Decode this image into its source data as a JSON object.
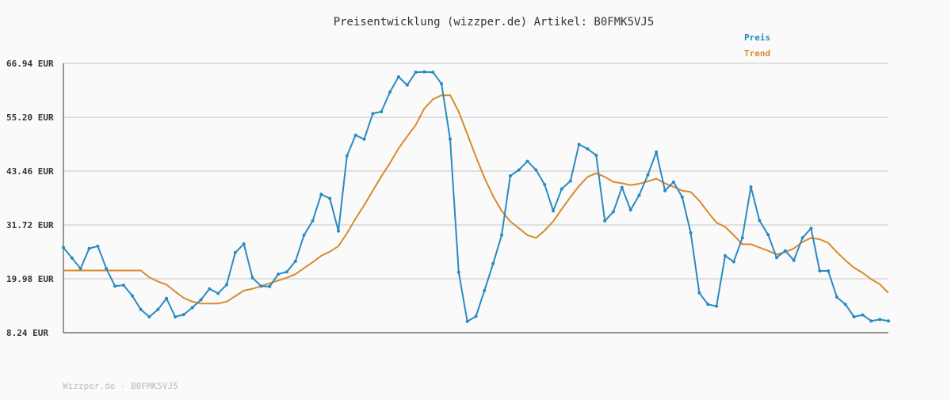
{
  "chart_data": {
    "type": "line",
    "title": "Preisentwicklung (wizzper.de) Artikel: B0FMK5VJ5",
    "y_ticks": [
      "66.94 EUR",
      "55.20 EUR",
      "43.46 EUR",
      "31.72 EUR",
      "19.98 EUR",
      "8.24 EUR"
    ],
    "ylim": [
      8.24,
      66.94
    ],
    "grid": true,
    "legend_position": "top-right",
    "series": [
      {
        "name": "Preis",
        "color": "#2a8ac2",
        "markers": true,
        "values": [
          26.8,
          24.5,
          22.2,
          26.6,
          27.1,
          22.2,
          18.4,
          18.6,
          16.3,
          13.3,
          11.7,
          13.3,
          15.7,
          11.7,
          12.2,
          13.7,
          15.4,
          17.8,
          16.8,
          18.7,
          25.7,
          27.6,
          20.2,
          18.4,
          18.3,
          21.0,
          21.5,
          23.8,
          29.5,
          32.6,
          38.4,
          37.5,
          30.4,
          46.8,
          51.3,
          50.4,
          56.0,
          56.4,
          60.7,
          64.0,
          62.2,
          65.0,
          65.1,
          65.0,
          62.5,
          50.4,
          21.4,
          10.7,
          11.8,
          17.4,
          23.3,
          29.5,
          42.4,
          43.7,
          45.6,
          43.7,
          40.5,
          34.8,
          39.6,
          41.3,
          49.3,
          48.3,
          46.9,
          32.6,
          34.6,
          39.9,
          35.0,
          38.2,
          42.6,
          47.6,
          39.2,
          41.1,
          37.8,
          30.0,
          16.9,
          14.4,
          14.0,
          25.0,
          23.7,
          28.9,
          40.0,
          32.7,
          29.6,
          24.6,
          26.1,
          24.0,
          28.9,
          31.0,
          21.7,
          21.7,
          16.0,
          14.4,
          11.7,
          12.1,
          10.8,
          11.1,
          10.8
        ]
      },
      {
        "name": "Trend",
        "color": "#d98a2b",
        "markers": false,
        "values": [
          21.8,
          21.8,
          21.8,
          21.8,
          21.8,
          21.8,
          21.8,
          21.8,
          21.8,
          21.8,
          20.3,
          19.4,
          18.7,
          17.2,
          15.8,
          15.0,
          14.6,
          14.6,
          14.6,
          15.0,
          16.2,
          17.4,
          17.8,
          18.4,
          19.0,
          19.6,
          20.2,
          21.0,
          22.3,
          23.6,
          25.0,
          25.9,
          27.1,
          29.9,
          33.1,
          36.0,
          39.2,
          42.3,
          45.2,
          48.4,
          51.0,
          53.5,
          57.1,
          59.1,
          60.0,
          60.0,
          56.4,
          51.5,
          46.6,
          42.0,
          38.0,
          34.8,
          32.5,
          31.0,
          29.5,
          28.9,
          30.5,
          32.5,
          35.2,
          37.8,
          40.2,
          42.2,
          43.0,
          42.2,
          41.1,
          40.8,
          40.4,
          40.7,
          41.2,
          41.8,
          40.8,
          40.0,
          39.2,
          38.9,
          37.0,
          34.5,
          32.2,
          31.3,
          29.5,
          27.5,
          27.5,
          26.8,
          26.1,
          25.3,
          25.8,
          26.6,
          28.0,
          28.9,
          28.6,
          27.8,
          25.8,
          24.0,
          22.4,
          21.3,
          19.9,
          18.8,
          16.9
        ]
      }
    ]
  },
  "footer": "Wizzper.de - B0FMK5VJ5"
}
